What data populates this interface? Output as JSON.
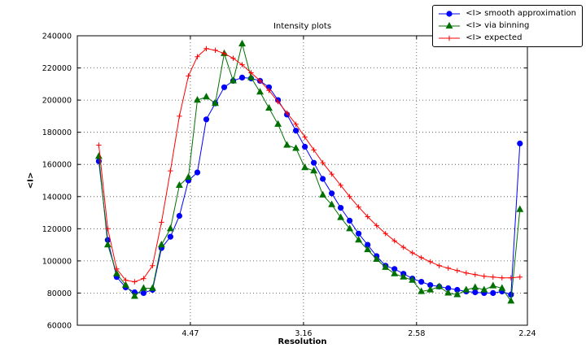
{
  "chart_data": {
    "type": "line",
    "title": "Intensity plots",
    "xlabel": "Resolution",
    "ylabel": "<I>",
    "grid": true,
    "legend_position": "upper right outside",
    "xlim": [
      0.0,
      0.1993
    ],
    "ylim": [
      60000,
      240000
    ],
    "xticks": [
      {
        "pos": 0.05005,
        "label": "4.47"
      },
      {
        "pos": 0.10014,
        "label": "3.16"
      },
      {
        "pos": 0.15023,
        "label": "2.58"
      },
      {
        "pos": 0.1993,
        "label": "2.24"
      }
    ],
    "yticks": [
      60000,
      80000,
      100000,
      120000,
      140000,
      160000,
      180000,
      200000,
      220000,
      240000
    ],
    "x": [
      0.0095,
      0.01347,
      0.01744,
      0.0214,
      0.02537,
      0.02934,
      0.03331,
      0.03728,
      0.04124,
      0.04521,
      0.04918,
      0.05315,
      0.05712,
      0.06108,
      0.06505,
      0.06902,
      0.07299,
      0.07696,
      0.08092,
      0.08489,
      0.08886,
      0.09283,
      0.0968,
      0.10076,
      0.10473,
      0.1087,
      0.11267,
      0.11664,
      0.1206,
      0.12457,
      0.12854,
      0.13251,
      0.13648,
      0.14044,
      0.14441,
      0.14838,
      0.15235,
      0.15632,
      0.16028,
      0.16425,
      0.16822,
      0.17219,
      0.17616,
      0.18012,
      0.18409,
      0.18806,
      0.19203,
      0.196
    ],
    "series": [
      {
        "name": "<I> smooth approximation",
        "color": "#0000ff",
        "marker": "circle",
        "values": [
          162000,
          113000,
          90000,
          83500,
          80500,
          80000,
          82000,
          108000,
          115000,
          128000,
          150000,
          155000,
          188000,
          198000,
          208000,
          212000,
          214000,
          213500,
          212000,
          208000,
          200000,
          191000,
          181000,
          171000,
          161000,
          151000,
          142000,
          133000,
          125000,
          117000,
          110000,
          103000,
          97000,
          95000,
          92000,
          89000,
          87000,
          85000,
          84000,
          83000,
          82000,
          81000,
          80500,
          80000,
          80000,
          81000,
          79000,
          173000
        ]
      },
      {
        "name": "<I> via binning",
        "color": "#007000",
        "marker": "triangle",
        "values": [
          165000,
          110000,
          92000,
          85000,
          78000,
          83000,
          83000,
          110000,
          120000,
          147000,
          152000,
          200000,
          202000,
          198000,
          229000,
          212000,
          235000,
          214000,
          205000,
          195000,
          185000,
          172000,
          170000,
          158000,
          156000,
          141000,
          135000,
          127000,
          120000,
          113000,
          107000,
          101000,
          96000,
          92000,
          90000,
          88000,
          81000,
          82000,
          84000,
          80000,
          79000,
          82000,
          83500,
          82000,
          84500,
          83000,
          75000,
          132000
        ]
      },
      {
        "name": "<I> expected",
        "color": "#ff0000",
        "marker": "plus",
        "values": [
          172000,
          120000,
          95000,
          88000,
          87000,
          89000,
          97000,
          124000,
          156000,
          190000,
          215000,
          227000,
          232000,
          231000,
          229000,
          226000,
          222000,
          217000,
          212000,
          206000,
          199000,
          192000,
          185000,
          177000,
          169000,
          161000,
          154000,
          147000,
          140000,
          133500,
          127500,
          122000,
          117000,
          112500,
          108500,
          105000,
          102000,
          99500,
          97000,
          95500,
          94000,
          92500,
          91500,
          90500,
          90000,
          89500,
          89500,
          90000
        ]
      }
    ]
  }
}
